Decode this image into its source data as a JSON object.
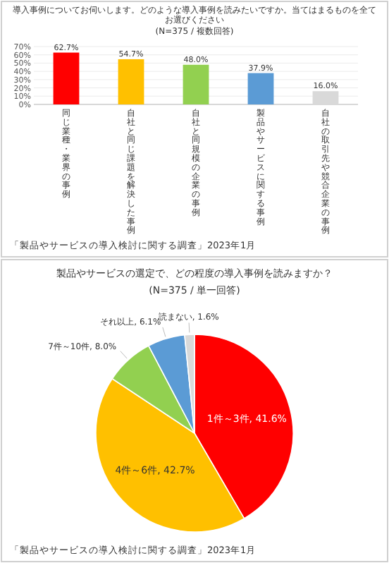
{
  "chart_data": [
    {
      "type": "bar",
      "title": "導入事例についてお伺いします。どのような導入事例を読みたいですか。当てはまるものを全てお選びください",
      "subtitle": "(N=375 / 複数回答)",
      "categories": [
        "同じ業種・業界の事例",
        "自社と同じ課題を解決した事例",
        "自社と同規模の企業の事例",
        "製品やサービスに関する事例",
        "自社の取引先や競合企業の事例"
      ],
      "values": [
        62.7,
        54.7,
        48.0,
        37.9,
        16.0
      ],
      "colors": [
        "#ff0000",
        "#ffc000",
        "#92d050",
        "#5b9bd5",
        "#d9d9d9"
      ],
      "value_labels": [
        "62.7%",
        "54.7%",
        "48.0%",
        "37.9%",
        "16.0%"
      ],
      "ylim": [
        0,
        70
      ],
      "grid": "y",
      "yticks": [
        {
          "value": 0,
          "label": "0%"
        },
        {
          "value": 10,
          "label": "10%"
        },
        {
          "value": 20,
          "label": "20%"
        },
        {
          "value": 30,
          "label": "30%"
        },
        {
          "value": 40,
          "label": "40%"
        },
        {
          "value": 50,
          "label": "50%"
        },
        {
          "value": 60,
          "label": "60%"
        },
        {
          "value": 70,
          "label": "70%"
        }
      ],
      "annotations": [
        "「製品やサービスの導入検討に関する調査」2023年1月"
      ]
    },
    {
      "type": "pie",
      "title": "製品やサービスの選定で、どの程度の導入事例を読みますか？",
      "subtitle": "(N=375 / 単一回答)",
      "categories": [
        "1件～3件",
        "4件～6件",
        "7件～10件",
        "それ以上",
        "読まない"
      ],
      "values": [
        41.6,
        42.7,
        8.0,
        6.1,
        1.6
      ],
      "colors": [
        "#ff0000",
        "#ffc000",
        "#92d050",
        "#5b9bd5",
        "#d9d9d9"
      ],
      "value_labels": [
        "41.6%",
        "42.7%",
        "8.0%",
        "6.1%",
        "1.6%"
      ],
      "annotations": [
        "「製品やサービスの導入検討に関する調査」2023年1月"
      ]
    }
  ]
}
